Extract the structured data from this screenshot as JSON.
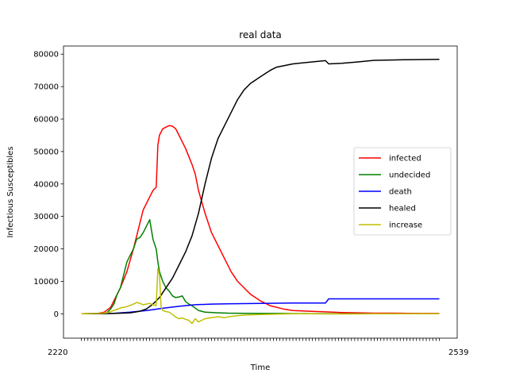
{
  "chart_data": {
    "type": "line",
    "title": "real data",
    "xlabel": "Time",
    "ylabel": "Infectious Susceptibles",
    "x_tick_overlap_text_left": "2220",
    "x_tick_overlap_text_right": "2539",
    "ylim": [
      -7500,
      82500
    ],
    "yticks": [
      0,
      10000,
      20000,
      30000,
      40000,
      50000,
      60000,
      70000,
      80000
    ],
    "ytick_labels": [
      "0",
      "10000",
      "20000",
      "30000",
      "40000",
      "50000",
      "60000",
      "70000",
      "80000"
    ],
    "xlim": [
      -5.5,
      115.5
    ],
    "x_tick_count": 111,
    "grid": false,
    "legend_position": "right",
    "series": [
      {
        "name": "infected",
        "color": "#ff0000",
        "points": [
          [
            0,
            0
          ],
          [
            5,
            100
          ],
          [
            7,
            500
          ],
          [
            9,
            2000
          ],
          [
            10,
            4000
          ],
          [
            12,
            8000
          ],
          [
            14,
            13000
          ],
          [
            16,
            20000
          ],
          [
            18,
            28000
          ],
          [
            19,
            32000
          ],
          [
            21,
            36000
          ],
          [
            22,
            38000
          ],
          [
            23,
            39000
          ],
          [
            23.5,
            52000
          ],
          [
            24,
            55000
          ],
          [
            25,
            57000
          ],
          [
            26,
            57500
          ],
          [
            27,
            58000
          ],
          [
            28,
            57800
          ],
          [
            29,
            57000
          ],
          [
            30,
            55000
          ],
          [
            32,
            51000
          ],
          [
            34,
            46000
          ],
          [
            35,
            43000
          ],
          [
            36,
            38000
          ],
          [
            38,
            31000
          ],
          [
            40,
            25000
          ],
          [
            42,
            21000
          ],
          [
            44,
            17000
          ],
          [
            46,
            13000
          ],
          [
            48,
            10000
          ],
          [
            50,
            8000
          ],
          [
            52,
            6000
          ],
          [
            55,
            4000
          ],
          [
            58,
            2500
          ],
          [
            62,
            1500
          ],
          [
            65,
            1000
          ],
          [
            70,
            800
          ],
          [
            75,
            600
          ],
          [
            80,
            400
          ],
          [
            85,
            300
          ],
          [
            90,
            200
          ],
          [
            95,
            200
          ],
          [
            100,
            150
          ],
          [
            105,
            100
          ],
          [
            110,
            100
          ]
        ]
      },
      {
        "name": "undecided",
        "color": "#008000",
        "points": [
          [
            0,
            0
          ],
          [
            7,
            100
          ],
          [
            8,
            500
          ],
          [
            9,
            1500
          ],
          [
            10,
            3000
          ],
          [
            11,
            6000
          ],
          [
            12,
            8000
          ],
          [
            13,
            12000
          ],
          [
            14,
            16000
          ],
          [
            15,
            18000
          ],
          [
            16,
            20000
          ],
          [
            17,
            23000
          ],
          [
            18,
            23500
          ],
          [
            19,
            25000
          ],
          [
            20,
            27000
          ],
          [
            21,
            29000
          ],
          [
            22,
            23000
          ],
          [
            23,
            20000
          ],
          [
            23.5,
            16000
          ],
          [
            24,
            13000
          ],
          [
            25,
            10000
          ],
          [
            26,
            8000
          ],
          [
            27,
            7000
          ],
          [
            28,
            5500
          ],
          [
            29,
            5000
          ],
          [
            30,
            5200
          ],
          [
            31,
            5500
          ],
          [
            32,
            3800
          ],
          [
            33,
            3000
          ],
          [
            34,
            2500
          ],
          [
            36,
            1000
          ],
          [
            38,
            500
          ],
          [
            42,
            300
          ],
          [
            45,
            200
          ],
          [
            50,
            150
          ],
          [
            55,
            100
          ],
          [
            60,
            100
          ],
          [
            70,
            50
          ],
          [
            80,
            30
          ],
          [
            90,
            20
          ],
          [
            100,
            10
          ],
          [
            110,
            10
          ]
        ]
      },
      {
        "name": "death",
        "color": "#0000ff",
        "points": [
          [
            0,
            0
          ],
          [
            5,
            50
          ],
          [
            10,
            150
          ],
          [
            15,
            500
          ],
          [
            20,
            1000
          ],
          [
            25,
            1700
          ],
          [
            30,
            2300
          ],
          [
            35,
            2800
          ],
          [
            40,
            3000
          ],
          [
            45,
            3100
          ],
          [
            50,
            3150
          ],
          [
            55,
            3200
          ],
          [
            60,
            3250
          ],
          [
            65,
            3300
          ],
          [
            70,
            3300
          ],
          [
            75,
            3300
          ],
          [
            76,
            4600
          ],
          [
            80,
            4600
          ],
          [
            90,
            4600
          ],
          [
            100,
            4600
          ],
          [
            110,
            4600
          ]
        ]
      },
      {
        "name": "healed",
        "color": "#000000",
        "points": [
          [
            0,
            0
          ],
          [
            5,
            30
          ],
          [
            10,
            100
          ],
          [
            15,
            300
          ],
          [
            18,
            800
          ],
          [
            20,
            1500
          ],
          [
            22,
            3000
          ],
          [
            24,
            5000
          ],
          [
            26,
            8000
          ],
          [
            28,
            11000
          ],
          [
            30,
            15000
          ],
          [
            32,
            19000
          ],
          [
            34,
            24000
          ],
          [
            36,
            31000
          ],
          [
            38,
            40000
          ],
          [
            40,
            48000
          ],
          [
            42,
            54000
          ],
          [
            44,
            58000
          ],
          [
            46,
            62000
          ],
          [
            48,
            66000
          ],
          [
            50,
            69000
          ],
          [
            52,
            71000
          ],
          [
            55,
            73000
          ],
          [
            58,
            75000
          ],
          [
            60,
            76000
          ],
          [
            65,
            77000
          ],
          [
            70,
            77500
          ],
          [
            75,
            78000
          ],
          [
            76,
            77000
          ],
          [
            80,
            77200
          ],
          [
            85,
            77600
          ],
          [
            90,
            78100
          ],
          [
            95,
            78200
          ],
          [
            100,
            78300
          ],
          [
            110,
            78400
          ]
        ]
      },
      {
        "name": "increase",
        "color": "#bfbf00",
        "points": [
          [
            0,
            0
          ],
          [
            5,
            100
          ],
          [
            8,
            300
          ],
          [
            10,
            1000
          ],
          [
            12,
            1800
          ],
          [
            14,
            2200
          ],
          [
            16,
            3000
          ],
          [
            17,
            3500
          ],
          [
            18,
            3200
          ],
          [
            19,
            2800
          ],
          [
            20,
            3000
          ],
          [
            21,
            3200
          ],
          [
            22,
            2800
          ],
          [
            23,
            2500
          ],
          [
            23.5,
            14000
          ],
          [
            24,
            12000
          ],
          [
            24.5,
            2000
          ],
          [
            25,
            1000
          ],
          [
            26,
            700
          ],
          [
            27,
            500
          ],
          [
            28,
            -200
          ],
          [
            29,
            -1000
          ],
          [
            30,
            -1500
          ],
          [
            31,
            -1300
          ],
          [
            32,
            -1700
          ],
          [
            33,
            -2000
          ],
          [
            34,
            -3000
          ],
          [
            35,
            -1500
          ],
          [
            36,
            -2500
          ],
          [
            37,
            -2000
          ],
          [
            38,
            -1500
          ],
          [
            40,
            -1200
          ],
          [
            42,
            -900
          ],
          [
            44,
            -1200
          ],
          [
            46,
            -800
          ],
          [
            48,
            -600
          ],
          [
            50,
            -400
          ],
          [
            52,
            -300
          ],
          [
            55,
            -200
          ],
          [
            60,
            -100
          ],
          [
            65,
            0
          ],
          [
            70,
            0
          ],
          [
            75,
            -50
          ],
          [
            80,
            -50
          ],
          [
            85,
            -30
          ],
          [
            90,
            0
          ],
          [
            95,
            0
          ],
          [
            100,
            0
          ],
          [
            110,
            0
          ]
        ]
      }
    ]
  }
}
